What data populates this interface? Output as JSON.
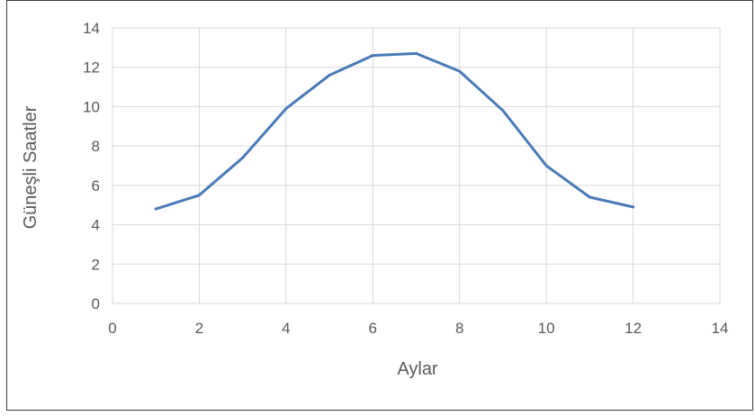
{
  "chart_data": {
    "type": "line",
    "xlabel": "Aylar",
    "ylabel": "Güneşli Saatler",
    "xlim": [
      0,
      14
    ],
    "ylim": [
      0,
      14
    ],
    "x_ticks": [
      "0",
      "2",
      "4",
      "6",
      "8",
      "10",
      "12",
      "14"
    ],
    "y_ticks": [
      "0",
      "2",
      "4",
      "6",
      "8",
      "10",
      "12",
      "14"
    ],
    "grid": true,
    "legend": "none",
    "series": [
      {
        "color": "#4a7ab7",
        "x": [
          1,
          2,
          3,
          4,
          5,
          6,
          7,
          8,
          9,
          10,
          11,
          12
        ],
        "y": [
          4.8,
          5.5,
          7.4,
          9.9,
          11.6,
          12.6,
          12.7,
          11.8,
          9.8,
          7.0,
          5.4,
          4.9
        ]
      }
    ]
  }
}
